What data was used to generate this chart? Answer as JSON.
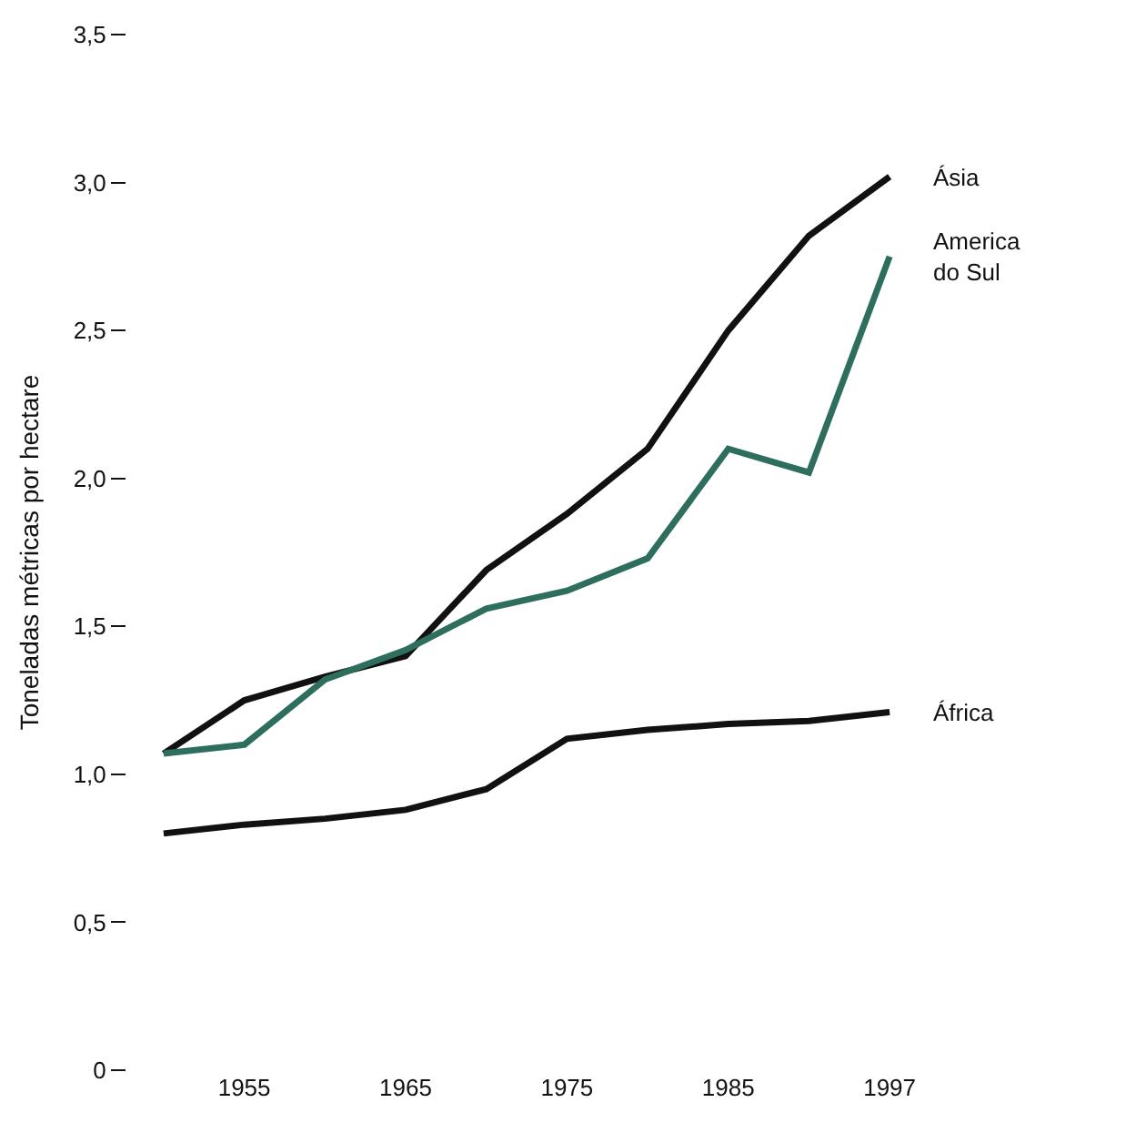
{
  "chart_data": {
    "type": "line",
    "ylabel": "Toneladas métricas por hectare",
    "categories": [
      null,
      "1955",
      null,
      "1965",
      null,
      "1975",
      null,
      "1985",
      null,
      "1997"
    ],
    "series": [
      {
        "name": "Ásia",
        "color": "#111111",
        "values": [
          1.07,
          1.25,
          1.33,
          1.4,
          1.69,
          1.88,
          2.1,
          2.5,
          2.82,
          3.02
        ]
      },
      {
        "name": "America do Sul",
        "color": "#2e6e5e",
        "values": [
          1.07,
          1.1,
          1.32,
          1.42,
          1.56,
          1.62,
          1.73,
          2.1,
          2.02,
          2.75
        ]
      },
      {
        "name": "África",
        "color": "#111111",
        "values": [
          0.8,
          0.83,
          0.85,
          0.88,
          0.95,
          1.12,
          1.15,
          1.17,
          1.18,
          1.21
        ]
      }
    ],
    "ylim": [
      0,
      3.5
    ],
    "yticks": [
      0,
      {
        "value": 0.5,
        "label": "0,5"
      },
      {
        "value": 1,
        "label": "1,0"
      },
      {
        "value": 1.5,
        "label": "1,5"
      },
      {
        "value": 2,
        "label": "2,0"
      },
      {
        "value": 2.5,
        "label": "2,5"
      },
      {
        "value": 3,
        "label": "3,0"
      },
      {
        "value": 3.5,
        "label": "3,5"
      }
    ],
    "legend": false,
    "marker": "none",
    "line_style": "solid"
  }
}
